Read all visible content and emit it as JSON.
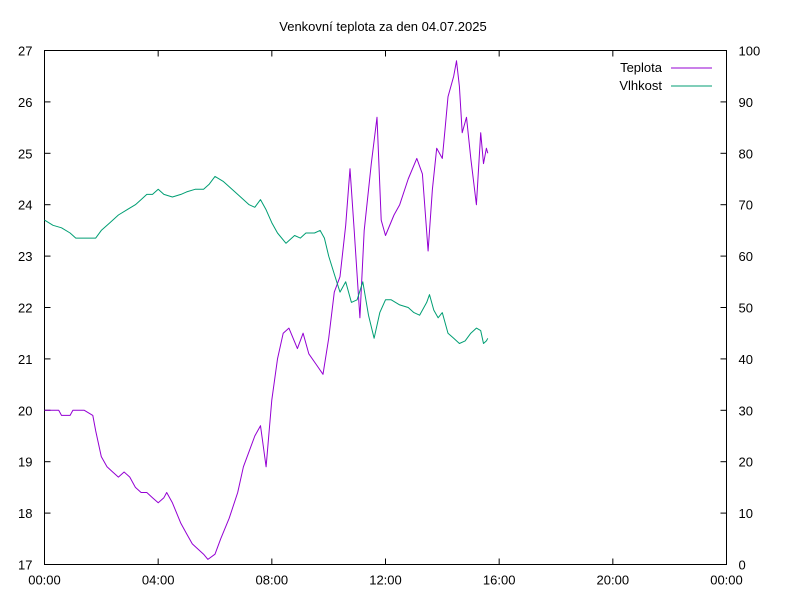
{
  "chart_data": {
    "type": "line",
    "title": "Venkovní teplota za den 04.07.2025",
    "xlabel": "",
    "ylabel": "",
    "y2label": "",
    "x_unit": "hours",
    "xlim": [
      0,
      24
    ],
    "ylim": [
      17,
      27
    ],
    "y2lim": [
      0,
      100
    ],
    "grid": false,
    "legend_position": "top-right",
    "x_ticks": [
      {
        "value": 0,
        "label": "00:00"
      },
      {
        "value": 4,
        "label": "04:00"
      },
      {
        "value": 8,
        "label": "08:00"
      },
      {
        "value": 12,
        "label": "12:00"
      },
      {
        "value": 16,
        "label": "16:00"
      },
      {
        "value": 20,
        "label": "20:00"
      },
      {
        "value": 24,
        "label": "00:00"
      }
    ],
    "y_ticks": [
      17,
      18,
      19,
      20,
      21,
      22,
      23,
      24,
      25,
      26,
      27
    ],
    "y2_ticks": [
      0,
      10,
      20,
      30,
      40,
      50,
      60,
      70,
      80,
      90,
      100
    ],
    "series": [
      {
        "name": "Teplota",
        "axis": "left",
        "color": "#9400d3",
        "x": [
          0.0,
          0.5,
          0.6,
          0.9,
          1.0,
          1.4,
          1.7,
          1.8,
          2.0,
          2.2,
          2.4,
          2.6,
          2.8,
          3.0,
          3.2,
          3.4,
          3.6,
          3.8,
          4.0,
          4.2,
          4.3,
          4.5,
          4.8,
          5.0,
          5.2,
          5.4,
          5.6,
          5.75,
          6.0,
          6.2,
          6.5,
          6.8,
          7.0,
          7.2,
          7.4,
          7.6,
          7.8,
          8.0,
          8.2,
          8.4,
          8.6,
          8.9,
          9.1,
          9.3,
          9.55,
          9.8,
          10.0,
          10.2,
          10.4,
          10.6,
          10.75,
          10.9,
          11.1,
          11.25,
          11.5,
          11.7,
          11.85,
          12.0,
          12.3,
          12.5,
          12.8,
          13.1,
          13.3,
          13.5,
          13.65,
          13.8,
          14.0,
          14.1,
          14.2,
          14.4,
          14.5,
          14.6,
          14.7,
          14.85,
          15.0,
          15.2,
          15.35,
          15.45,
          15.55,
          15.6
        ],
        "y": [
          20.0,
          20.0,
          19.9,
          19.9,
          20.0,
          20.0,
          19.9,
          19.6,
          19.1,
          18.9,
          18.8,
          18.7,
          18.8,
          18.7,
          18.5,
          18.4,
          18.4,
          18.3,
          18.2,
          18.3,
          18.4,
          18.2,
          17.8,
          17.6,
          17.4,
          17.3,
          17.2,
          17.1,
          17.2,
          17.5,
          17.9,
          18.4,
          18.9,
          19.2,
          19.5,
          19.7,
          18.9,
          20.2,
          21.0,
          21.5,
          21.6,
          21.2,
          21.5,
          21.1,
          20.9,
          20.7,
          21.4,
          22.3,
          22.6,
          23.6,
          24.7,
          23.5,
          21.8,
          23.5,
          24.8,
          25.7,
          23.7,
          23.4,
          23.8,
          24.0,
          24.5,
          24.9,
          24.6,
          23.1,
          24.3,
          25.1,
          24.9,
          25.5,
          26.1,
          26.5,
          26.8,
          26.3,
          25.4,
          25.7,
          24.9,
          24.0,
          25.4,
          24.8,
          25.1,
          25.0
        ]
      },
      {
        "name": "Vlhkost",
        "axis": "right",
        "color": "#009e73",
        "x": [
          0.0,
          0.3,
          0.6,
          0.9,
          1.1,
          1.3,
          1.6,
          1.8,
          2.0,
          2.3,
          2.6,
          2.9,
          3.2,
          3.4,
          3.6,
          3.8,
          4.0,
          4.2,
          4.5,
          4.8,
          5.0,
          5.3,
          5.6,
          5.8,
          6.0,
          6.3,
          6.6,
          6.9,
          7.2,
          7.4,
          7.6,
          7.8,
          8.0,
          8.2,
          8.5,
          8.8,
          9.0,
          9.2,
          9.5,
          9.7,
          9.85,
          10.0,
          10.2,
          10.4,
          10.6,
          10.8,
          11.0,
          11.2,
          11.4,
          11.6,
          11.8,
          12.0,
          12.2,
          12.5,
          12.8,
          13.0,
          13.2,
          13.45,
          13.55,
          13.7,
          13.85,
          14.0,
          14.2,
          14.4,
          14.6,
          14.8,
          15.0,
          15.2,
          15.35,
          15.45,
          15.55,
          15.6
        ],
        "y": [
          67,
          66,
          65.5,
          64.5,
          63.5,
          63.5,
          63.5,
          63.5,
          65,
          66.5,
          68,
          69,
          70,
          71,
          72,
          72,
          73,
          72,
          71.5,
          72,
          72.5,
          73,
          73,
          74,
          75.5,
          74.5,
          73,
          71.5,
          70,
          69.5,
          71,
          69,
          66.5,
          64.5,
          62.5,
          64,
          63.5,
          64.5,
          64.5,
          65,
          63.5,
          60,
          56.5,
          53,
          55,
          51,
          51.5,
          55,
          48.5,
          44,
          49,
          51.5,
          51.5,
          50.5,
          50,
          49,
          48.5,
          51,
          52.5,
          49.5,
          48,
          49,
          45,
          44,
          43,
          43.5,
          45,
          46,
          45.5,
          43,
          43.5,
          44
        ]
      }
    ]
  }
}
